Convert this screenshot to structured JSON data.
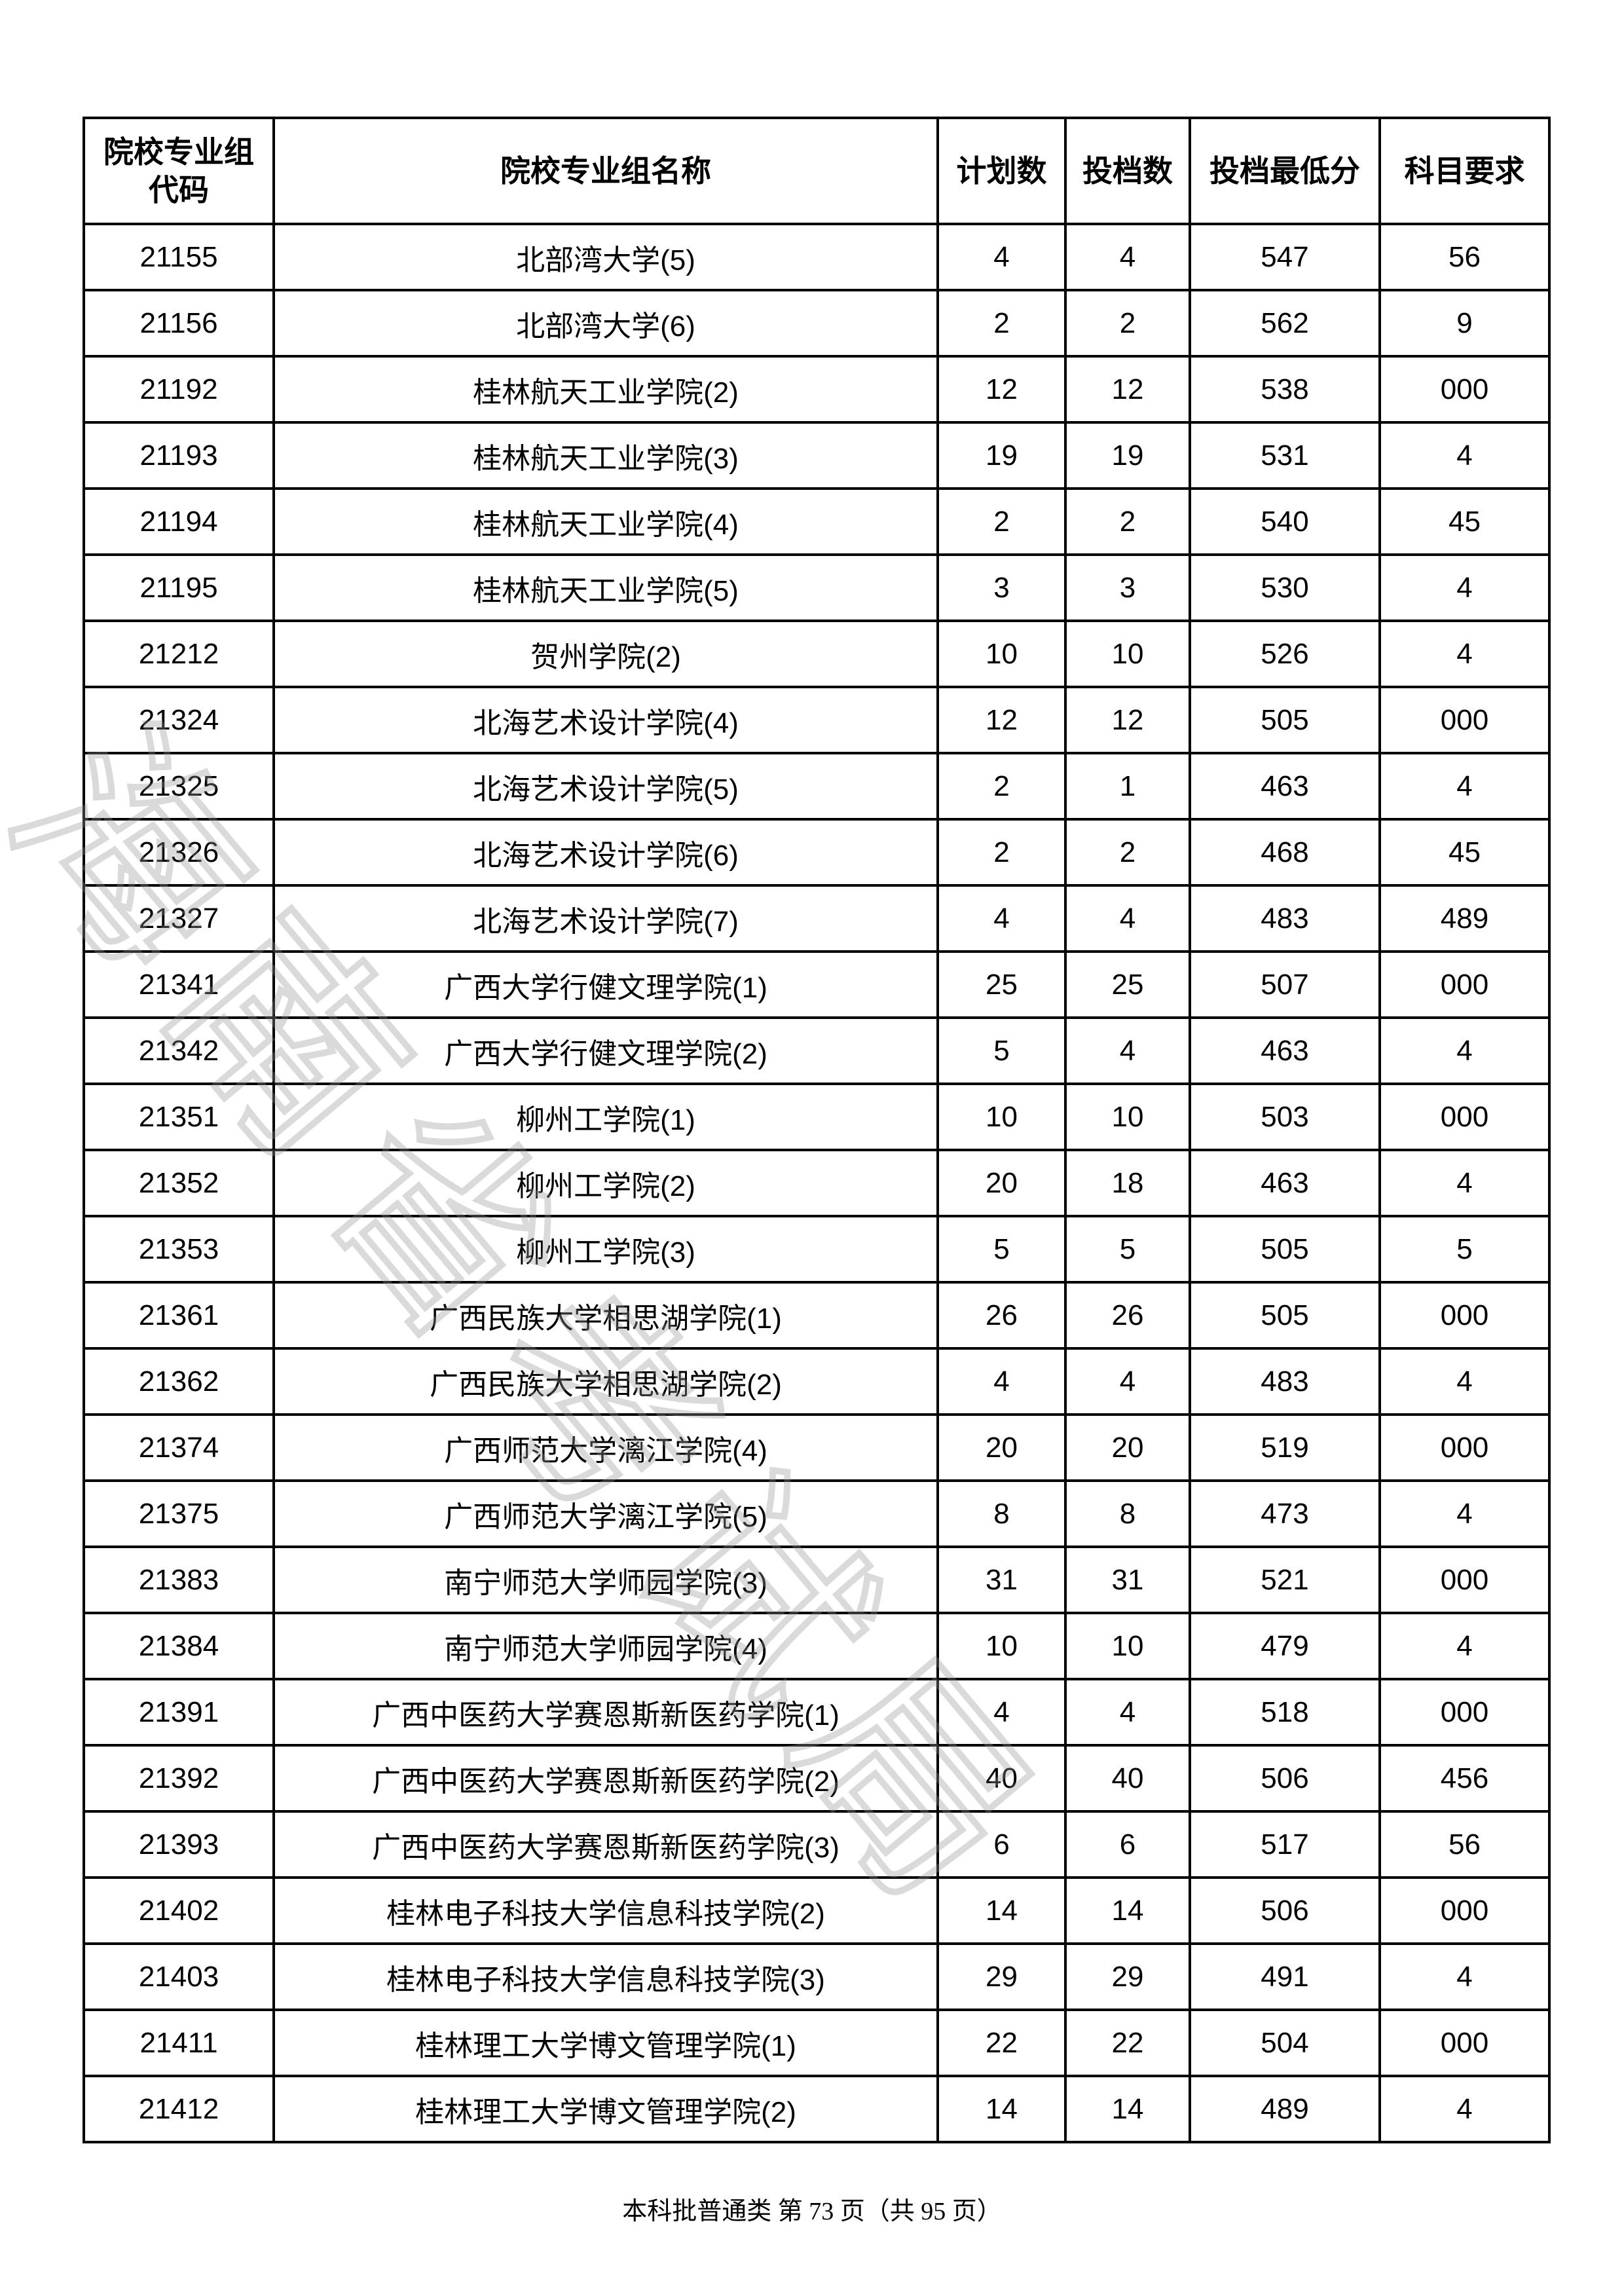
{
  "table": {
    "headers": [
      "院校专业组代码",
      "院校专业组名称",
      "计划数",
      "投档数",
      "投档最低分",
      "科目要求"
    ],
    "rows": [
      [
        "21155",
        "北部湾大学(5)",
        "4",
        "4",
        "547",
        "56"
      ],
      [
        "21156",
        "北部湾大学(6)",
        "2",
        "2",
        "562",
        "9"
      ],
      [
        "21192",
        "桂林航天工业学院(2)",
        "12",
        "12",
        "538",
        "000"
      ],
      [
        "21193",
        "桂林航天工业学院(3)",
        "19",
        "19",
        "531",
        "4"
      ],
      [
        "21194",
        "桂林航天工业学院(4)",
        "2",
        "2",
        "540",
        "45"
      ],
      [
        "21195",
        "桂林航天工业学院(5)",
        "3",
        "3",
        "530",
        "4"
      ],
      [
        "21212",
        "贺州学院(2)",
        "10",
        "10",
        "526",
        "4"
      ],
      [
        "21324",
        "北海艺术设计学院(4)",
        "12",
        "12",
        "505",
        "000"
      ],
      [
        "21325",
        "北海艺术设计学院(5)",
        "2",
        "1",
        "463",
        "4"
      ],
      [
        "21326",
        "北海艺术设计学院(6)",
        "2",
        "2",
        "468",
        "45"
      ],
      [
        "21327",
        "北海艺术设计学院(7)",
        "4",
        "4",
        "483",
        "489"
      ],
      [
        "21341",
        "广西大学行健文理学院(1)",
        "25",
        "25",
        "507",
        "000"
      ],
      [
        "21342",
        "广西大学行健文理学院(2)",
        "5",
        "4",
        "463",
        "4"
      ],
      [
        "21351",
        "柳州工学院(1)",
        "10",
        "10",
        "503",
        "000"
      ],
      [
        "21352",
        "柳州工学院(2)",
        "20",
        "18",
        "463",
        "4"
      ],
      [
        "21353",
        "柳州工学院(3)",
        "5",
        "5",
        "505",
        "5"
      ],
      [
        "21361",
        "广西民族大学相思湖学院(1)",
        "26",
        "26",
        "505",
        "000"
      ],
      [
        "21362",
        "广西民族大学相思湖学院(2)",
        "4",
        "4",
        "483",
        "4"
      ],
      [
        "21374",
        "广西师范大学漓江学院(4)",
        "20",
        "20",
        "519",
        "000"
      ],
      [
        "21375",
        "广西师范大学漓江学院(5)",
        "8",
        "8",
        "473",
        "4"
      ],
      [
        "21383",
        "南宁师范大学师园学院(3)",
        "31",
        "31",
        "521",
        "000"
      ],
      [
        "21384",
        "南宁师范大学师园学院(4)",
        "10",
        "10",
        "479",
        "4"
      ],
      [
        "21391",
        "广西中医药大学赛恩斯新医药学院(1)",
        "4",
        "4",
        "518",
        "000"
      ],
      [
        "21392",
        "广西中医药大学赛恩斯新医药学院(2)",
        "40",
        "40",
        "506",
        "456"
      ],
      [
        "21393",
        "广西中医药大学赛恩斯新医药学院(3)",
        "6",
        "6",
        "517",
        "56"
      ],
      [
        "21402",
        "桂林电子科技大学信息科技学院(2)",
        "14",
        "14",
        "506",
        "000"
      ],
      [
        "21403",
        "桂林电子科技大学信息科技学院(3)",
        "29",
        "29",
        "491",
        "4"
      ],
      [
        "21411",
        "桂林理工大学博文管理学院(1)",
        "22",
        "22",
        "504",
        "000"
      ],
      [
        "21412",
        "桂林理工大学博文管理学院(2)",
        "14",
        "14",
        "489",
        "4"
      ]
    ]
  },
  "watermark": "海南省考试局",
  "footer": "本科批普通类  第 73 页（共 95 页）"
}
